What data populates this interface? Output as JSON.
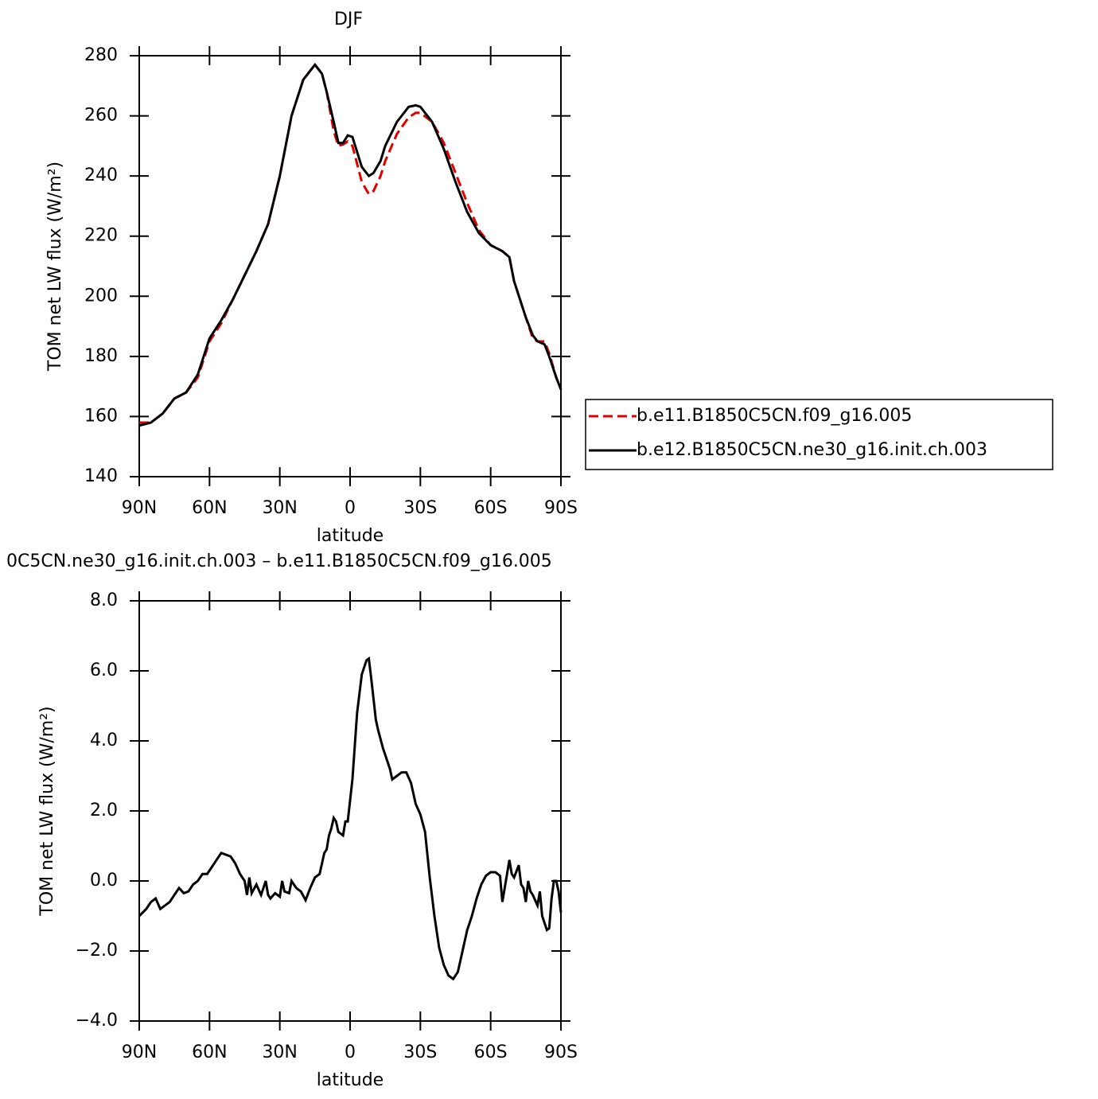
{
  "chart_data": [
    {
      "type": "line",
      "title": "DJF",
      "x_label": "latitude",
      "y_label": "TOM net LW flux (W/m²)",
      "xlim": [
        90,
        -90
      ],
      "xticks": [
        {
          "value": 90,
          "label": "90N"
        },
        {
          "value": 60,
          "label": "60N"
        },
        {
          "value": 30,
          "label": "30N"
        },
        0,
        {
          "value": -30,
          "label": "30S"
        },
        {
          "value": -60,
          "label": "60S"
        },
        {
          "value": -90,
          "label": "90S"
        }
      ],
      "ylim": [
        140,
        280
      ],
      "yticks": [
        140,
        160,
        180,
        200,
        220,
        240,
        260,
        280
      ],
      "legend": "outside-right",
      "x": [
        90,
        85,
        80,
        75,
        70,
        65,
        60,
        55,
        50,
        45,
        40,
        35,
        30,
        25,
        20,
        15,
        12,
        10,
        7,
        5,
        3,
        1,
        -1,
        -3,
        -5,
        -8,
        -10,
        -13,
        -15,
        -20,
        -25,
        -28,
        -30,
        -35,
        -40,
        -45,
        -50,
        -55,
        -60,
        -65,
        -68,
        -70,
        -75,
        -78,
        -80,
        -83,
        -85,
        -88,
        -90
      ],
      "series": [
        {
          "name": "b.e11.B1850C5CN.f09_g16.005",
          "color": "#e00000",
          "line_style": "dashed",
          "values": [
            158,
            158,
            161,
            166,
            168,
            173,
            185,
            191,
            199,
            207,
            215,
            224,
            240,
            260,
            272,
            277,
            274,
            268,
            255,
            250,
            250.5,
            251.5,
            250,
            244,
            238,
            234,
            235,
            240,
            245,
            254,
            259.5,
            261,
            261,
            258,
            251,
            241,
            231,
            222,
            217,
            215,
            213,
            205,
            193,
            186,
            185,
            185,
            181,
            173,
            169
          ]
        },
        {
          "name": "b.e12.B1850C5CN.ne30_g16.init.ch.003",
          "color": "#000000",
          "line_style": "solid",
          "values": [
            157,
            158,
            161,
            166,
            168,
            174,
            186,
            192,
            199,
            207,
            215,
            224,
            240,
            260,
            272,
            277,
            274,
            268,
            258,
            251,
            251,
            253.5,
            253,
            248,
            243,
            240,
            241,
            245,
            250,
            258,
            263,
            263.5,
            263,
            258,
            249,
            238,
            228,
            221,
            217,
            215,
            213,
            205,
            193,
            187,
            185,
            184,
            180,
            173,
            169
          ]
        }
      ]
    },
    {
      "type": "line",
      "title": "0C5CN.ne30_g16.init.ch.003 – b.e11.B1850C5CN.f09_g16.005",
      "x_label": "latitude",
      "y_label": "TOM net LW flux (W/m²)",
      "xlim": [
        90,
        -90
      ],
      "xticks": [
        {
          "value": 90,
          "label": "90N"
        },
        {
          "value": 60,
          "label": "60N"
        },
        {
          "value": 30,
          "label": "30N"
        },
        0,
        {
          "value": -30,
          "label": "30S"
        },
        {
          "value": -60,
          "label": "60S"
        },
        {
          "value": -90,
          "label": "90S"
        }
      ],
      "ylim": [
        -4,
        8
      ],
      "yticks": [
        {
          "value": -4,
          "label": "−4.0"
        },
        {
          "value": -2,
          "label": "−2.0"
        },
        {
          "value": 0,
          "label": "0.0"
        },
        {
          "value": 2,
          "label": "2.0"
        },
        {
          "value": 4,
          "label": "4.0"
        },
        {
          "value": 6,
          "label": "6.0"
        },
        {
          "value": 8,
          "label": "8.0"
        }
      ],
      "color": "#000000",
      "x": [
        90,
        87,
        85,
        83,
        81,
        79,
        77,
        75,
        73,
        71,
        69,
        67,
        65,
        63,
        61,
        59,
        57,
        55,
        53,
        51,
        49,
        47,
        45,
        44,
        43,
        42,
        40,
        38,
        36,
        35,
        34,
        32,
        30,
        29,
        28,
        26,
        25,
        23,
        21,
        19,
        17,
        15,
        13,
        11,
        10,
        9,
        8,
        7,
        6,
        5,
        3,
        2,
        1,
        0,
        -1,
        -3,
        -5,
        -7,
        -8,
        -9,
        -11,
        -12,
        -14,
        -16,
        -17,
        -18,
        -20,
        -22,
        -24,
        -26,
        -28,
        -30,
        -32,
        -34,
        -36,
        -38,
        -40,
        -42,
        -44,
        -46,
        -48,
        -50,
        -52,
        -54,
        -56,
        -58,
        -60,
        -62,
        -64,
        -65,
        -67,
        -68,
        -69,
        -70,
        -72,
        -73,
        -74,
        -75,
        -76,
        -77,
        -78,
        -80,
        -81,
        -82,
        -84,
        -85,
        -86,
        -87,
        -88,
        -89,
        -90
      ],
      "values": [
        -1.0,
        -0.8,
        -0.6,
        -0.5,
        -0.8,
        -0.7,
        -0.6,
        -0.4,
        -0.2,
        -0.35,
        -0.3,
        -0.1,
        0.0,
        0.2,
        0.2,
        0.4,
        0.6,
        0.8,
        0.75,
        0.7,
        0.5,
        0.2,
        0.0,
        -0.4,
        0.1,
        -0.35,
        -0.1,
        -0.4,
        0.0,
        -0.4,
        -0.5,
        -0.35,
        -0.45,
        0.0,
        -0.3,
        -0.35,
        0.0,
        -0.2,
        -0.3,
        -0.55,
        -0.2,
        0.1,
        0.2,
        0.8,
        0.9,
        1.3,
        1.5,
        1.8,
        1.7,
        1.4,
        1.3,
        1.7,
        1.7,
        2.3,
        2.9,
        4.8,
        5.9,
        6.3,
        6.35,
        5.8,
        4.6,
        4.3,
        3.8,
        3.4,
        3.2,
        2.9,
        3.0,
        3.1,
        3.1,
        2.8,
        2.2,
        1.9,
        1.4,
        0.1,
        -1.0,
        -1.9,
        -2.4,
        -2.7,
        -2.8,
        -2.6,
        -2.0,
        -1.4,
        -1.0,
        -0.5,
        -0.1,
        0.15,
        0.25,
        0.25,
        0.15,
        -0.6,
        0.2,
        0.6,
        0.2,
        0.1,
        0.45,
        -0.1,
        -0.2,
        -0.6,
        0.0,
        -0.3,
        -0.4,
        -0.7,
        -0.3,
        -1.0,
        -1.4,
        -1.35,
        -0.5,
        0.0,
        0.0,
        -0.3,
        -0.9
      ]
    }
  ]
}
